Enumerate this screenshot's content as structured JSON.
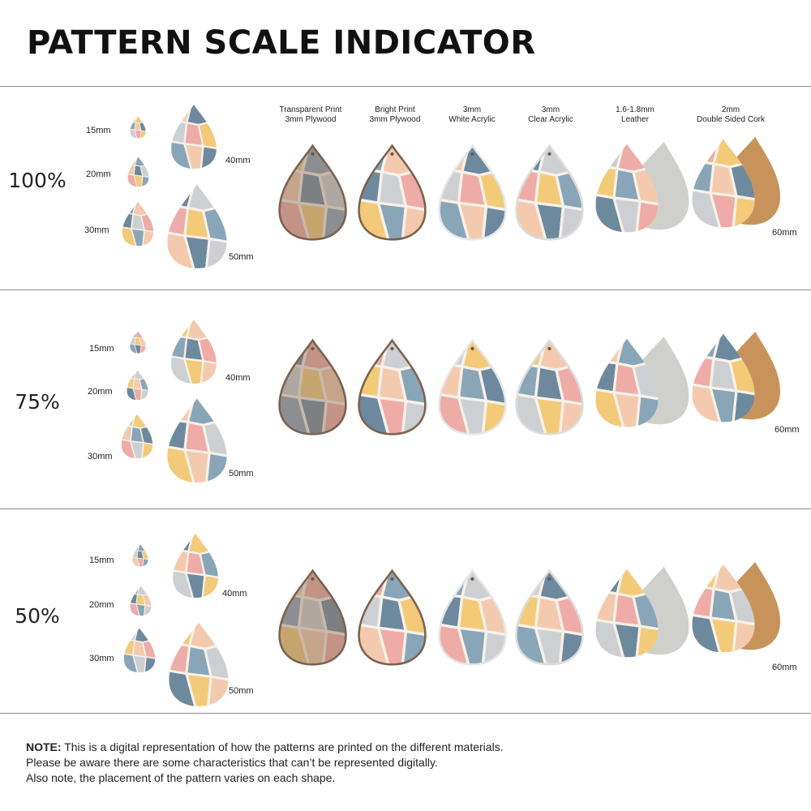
{
  "title": "PATTERN SCALE INDICATOR",
  "materials": [
    {
      "line1": "Transparent Print",
      "line2": "3mm Plywood"
    },
    {
      "line1": "Bright Print",
      "line2": "3mm Plywood"
    },
    {
      "line1": "3mm",
      "line2": "White Acrylic"
    },
    {
      "line1": "3mm",
      "line2": "Clear Acrylic"
    },
    {
      "line1": "1.6-1.8mm",
      "line2": "Leather"
    },
    {
      "line1": "2mm",
      "line2": "Double Sided Cork"
    }
  ],
  "sizes": [
    "15mm",
    "20mm",
    "30mm",
    "40mm",
    "50mm"
  ],
  "large_size_label": "60mm",
  "scales": [
    {
      "label": "100%"
    },
    {
      "label": "75%"
    },
    {
      "label": "50%"
    }
  ],
  "note": {
    "bold": "NOTE:",
    "line1": " This is a digital representation of how the patterns are printed on the different materials.",
    "line2": "Please be aware there are some characteristics that can’t be represented digitally.",
    "line3": "Also note, the placement of the pattern varies on each shape."
  },
  "palette": {
    "pink": "#eea3a0",
    "peach": "#f2c6a8",
    "yellow": "#f1c66c",
    "blue": "#7d9db3",
    "slate": "#5e7e96",
    "cream": "#f7f1e8",
    "grey": "#c8ccd0",
    "wood": "#8e7561",
    "cork": "#c8935a",
    "suede": "#cfd0cc"
  }
}
